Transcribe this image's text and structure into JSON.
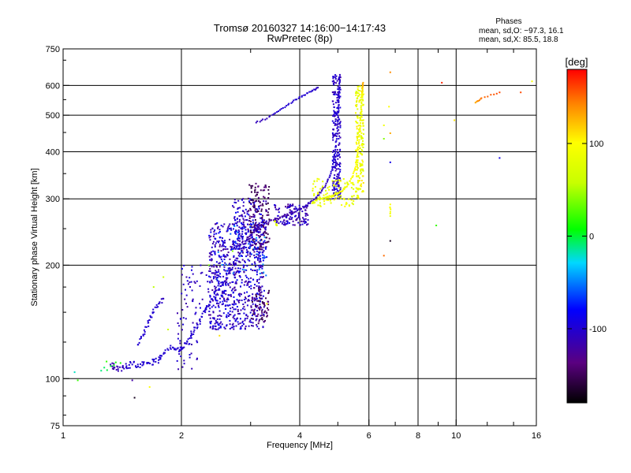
{
  "chart_data": {
    "type": "scatter",
    "title": "Tromsø 20160327 14:16:00−14:17:43",
    "subtitle": "RwPretec (8p)",
    "phases": {
      "heading": "Phases",
      "o_line": "mean, sd,O: −97.3, 16.1",
      "x_line": "mean, sd,X:  85.5, 18.8"
    },
    "xlabel": "Frequency [MHz]",
    "ylabel": "Stationary phase Virtual Height [km]",
    "xscale": "log",
    "yscale": "log",
    "xlim": [
      1,
      16
    ],
    "ylim": [
      75,
      750
    ],
    "xticks": [
      {
        "value": 1,
        "label": "1"
      },
      {
        "value": 2,
        "label": "2"
      },
      {
        "value": 4,
        "label": "4"
      },
      {
        "value": 6,
        "label": "6"
      },
      {
        "value": 8,
        "label": "8"
      },
      {
        "value": 10,
        "label": "10"
      },
      {
        "value": 16,
        "label": "16"
      }
    ],
    "xgrid": [
      2,
      4,
      6,
      8,
      10
    ],
    "yticks": [
      {
        "value": 75,
        "label": "75"
      },
      {
        "value": 100,
        "label": "100"
      },
      {
        "value": 200,
        "label": "200"
      },
      {
        "value": 300,
        "label": "300"
      },
      {
        "value": 400,
        "label": "400"
      },
      {
        "value": 500,
        "label": "500"
      },
      {
        "value": 600,
        "label": "600"
      },
      {
        "value": 750,
        "label": "750"
      }
    ],
    "ygrid": [
      100,
      200,
      300,
      400,
      500,
      600
    ],
    "grid": true,
    "colorbar": {
      "label": "[deg]",
      "range": [
        -180,
        180
      ],
      "ticks": [
        {
          "value": 100,
          "label": "100"
        },
        {
          "value": 0,
          "label": "0"
        },
        {
          "value": -100,
          "label": "-100"
        }
      ]
    },
    "points": [
      [
        1.07,
        104,
        -20
      ],
      [
        1.09,
        99,
        20
      ],
      [
        1.29,
        111,
        20
      ],
      [
        1.32,
        109,
        -110
      ],
      [
        1.35,
        107,
        -120
      ],
      [
        1.38,
        106,
        -110
      ],
      [
        1.42,
        107,
        -110
      ],
      [
        1.45,
        108,
        -100
      ],
      [
        1.5,
        109,
        -100
      ],
      [
        1.55,
        109,
        -100
      ],
      [
        1.6,
        109,
        -100
      ],
      [
        1.65,
        110,
        -100
      ],
      [
        1.7,
        111,
        -100
      ],
      [
        1.75,
        112,
        -100
      ],
      [
        1.78,
        115,
        -100
      ],
      [
        1.82,
        119,
        -100
      ],
      [
        1.9,
        121,
        -100
      ],
      [
        1.95,
        120,
        -100
      ],
      [
        2.0,
        120,
        -100
      ],
      [
        2.05,
        124,
        -100
      ],
      [
        2.1,
        128,
        -100
      ],
      [
        2.15,
        133,
        -100
      ],
      [
        2.2,
        139,
        -100
      ],
      [
        2.25,
        146,
        -100
      ],
      [
        2.3,
        152,
        -100
      ],
      [
        2.35,
        157,
        -100
      ],
      [
        2.4,
        162,
        -100
      ],
      [
        2.5,
        172,
        -100
      ],
      [
        2.6,
        185,
        -100
      ],
      [
        2.7,
        197,
        -110
      ],
      [
        2.8,
        212,
        -110
      ],
      [
        2.9,
        228,
        -110
      ],
      [
        3.0,
        240,
        -110
      ],
      [
        3.1,
        250,
        -110
      ],
      [
        3.2,
        256,
        -120
      ],
      [
        3.35,
        262,
        -120
      ],
      [
        3.5,
        266,
        -120
      ],
      [
        3.65,
        270,
        -120
      ],
      [
        3.8,
        275,
        -120
      ],
      [
        3.95,
        280,
        -110
      ],
      [
        4.1,
        285,
        -110
      ],
      [
        4.25,
        292,
        -110
      ],
      [
        4.4,
        302,
        -110
      ],
      [
        4.55,
        315,
        -110
      ],
      [
        4.7,
        333,
        -110
      ],
      [
        4.8,
        350,
        -100
      ],
      [
        4.88,
        375,
        -100
      ],
      [
        4.93,
        405,
        -100
      ],
      [
        4.97,
        440,
        -100
      ],
      [
        5.0,
        480,
        -100
      ],
      [
        5.02,
        520,
        -100
      ],
      [
        5.04,
        560,
        -100
      ],
      [
        5.05,
        600,
        -100
      ],
      [
        5.06,
        640,
        -110
      ],
      [
        1.55,
        123,
        -100
      ],
      [
        1.6,
        130,
        -100
      ],
      [
        1.63,
        137,
        -100
      ],
      [
        1.66,
        143,
        -100
      ],
      [
        1.7,
        150,
        -100
      ],
      [
        1.75,
        158,
        -100
      ],
      [
        1.8,
        163,
        -110
      ],
      [
        3.1,
        478,
        -110
      ],
      [
        3.3,
        490,
        -110
      ],
      [
        3.5,
        510,
        -100
      ],
      [
        3.7,
        530,
        -100
      ],
      [
        3.9,
        550,
        -100
      ],
      [
        4.1,
        565,
        -100
      ],
      [
        4.3,
        580,
        -100
      ],
      [
        4.45,
        592,
        -110
      ],
      [
        3.45,
        262,
        70
      ],
      [
        3.5,
        255,
        80
      ],
      [
        4.3,
        292,
        80
      ],
      [
        4.4,
        297,
        80
      ],
      [
        4.55,
        300,
        80
      ],
      [
        4.7,
        302,
        85
      ],
      [
        4.85,
        305,
        90
      ],
      [
        5.0,
        310,
        90
      ],
      [
        5.15,
        316,
        90
      ],
      [
        5.3,
        327,
        90
      ],
      [
        5.45,
        343,
        100
      ],
      [
        5.55,
        365,
        100
      ],
      [
        5.62,
        395,
        95
      ],
      [
        5.67,
        430,
        95
      ],
      [
        5.7,
        470,
        90
      ],
      [
        5.73,
        510,
        85
      ],
      [
        5.76,
        550,
        85
      ],
      [
        5.78,
        590,
        120
      ],
      [
        5.8,
        610,
        130
      ],
      [
        6.55,
        470,
        90
      ],
      [
        6.55,
        433,
        40
      ],
      [
        6.55,
        212,
        150
      ],
      [
        6.8,
        650,
        140
      ],
      [
        6.8,
        448,
        130
      ],
      [
        6.8,
        290,
        100
      ],
      [
        6.8,
        270,
        90
      ],
      [
        6.8,
        375,
        -90
      ],
      [
        6.8,
        232,
        -170
      ],
      [
        6.75,
        527,
        100
      ],
      [
        8.9,
        255,
        20
      ],
      [
        9.2,
        610,
        170
      ],
      [
        9.9,
        485,
        110
      ],
      [
        11.2,
        540,
        130
      ],
      [
        11.6,
        555,
        150
      ],
      [
        12.9,
        575,
        160
      ],
      [
        12.9,
        385,
        -90
      ],
      [
        14.6,
        575,
        160
      ],
      [
        15.6,
        615,
        95
      ],
      [
        1.25,
        105,
        -10
      ],
      [
        1.4,
        110,
        15
      ],
      [
        1.8,
        186,
        60
      ],
      [
        1.85,
        135,
        60
      ],
      [
        1.7,
        175,
        55
      ],
      [
        1.5,
        99,
        -120
      ],
      [
        1.52,
        89,
        -170
      ],
      [
        1.66,
        95,
        100
      ],
      [
        2.5,
        130,
        110
      ],
      [
        3.3,
        158,
        100
      ],
      [
        3.25,
        150,
        -150
      ],
      [
        2.7,
        218,
        40
      ],
      [
        2.35,
        200,
        40
      ]
    ],
    "clusters": [
      {
        "f": [
          2.35,
          3.25
        ],
        "h": [
          135,
          260
        ],
        "ph": [
          -130,
          -80
        ],
        "n": 700
      },
      {
        "f": [
          2.7,
          3.3
        ],
        "h": [
          220,
          300
        ],
        "ph": [
          -120,
          -80
        ],
        "n": 170
      },
      {
        "f": [
          2.95,
          3.35
        ],
        "h": [
          220,
          330
        ],
        "ph": [
          -160,
          -130
        ],
        "n": 150
      },
      {
        "f": [
          3.0,
          3.35
        ],
        "h": [
          140,
          175
        ],
        "ph": [
          -165,
          -130
        ],
        "n": 60
      },
      {
        "f": [
          2.45,
          3.3
        ],
        "h": [
          180,
          260
        ],
        "ph": [
          -95,
          -40
        ],
        "n": 60
      },
      {
        "f": [
          2.0,
          2.4
        ],
        "h": [
          150,
          200
        ],
        "ph": [
          -120,
          -90
        ],
        "n": 50
      },
      {
        "f": [
          1.95,
          2.2
        ],
        "h": [
          105,
          150
        ],
        "ph": [
          -120,
          -95
        ],
        "n": 40
      },
      {
        "f": [
          3.45,
          4.2
        ],
        "h": [
          255,
          290
        ],
        "ph": [
          -130,
          -90
        ],
        "n": 120
      },
      {
        "f": [
          4.85,
          5.08
        ],
        "h": [
          300,
          640
        ],
        "ph": [
          -120,
          -90
        ],
        "n": 230
      },
      {
        "f": [
          5.55,
          5.82
        ],
        "h": [
          300,
          600
        ],
        "ph": [
          70,
          110
        ],
        "n": 180
      },
      {
        "f": [
          4.3,
          5.5
        ],
        "h": [
          285,
          340
        ],
        "ph": [
          70,
          100
        ],
        "n": 90
      }
    ]
  }
}
